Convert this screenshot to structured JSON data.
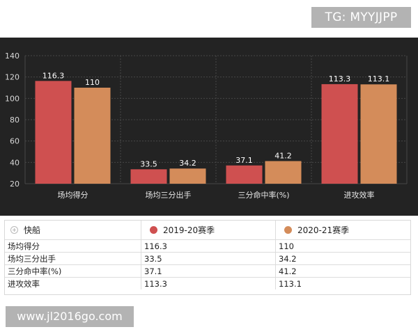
{
  "watermark_top": "TG: MYYJJPP",
  "watermark_bottom": "www.jl2016go.com",
  "colors": {
    "series1": "#cf5050",
    "series2": "#d48c5a",
    "background": "#232323"
  },
  "chart_data": {
    "type": "bar",
    "categories": [
      "场均得分",
      "场均三分出手",
      "三分命中率(%)",
      "进攻效率"
    ],
    "series": [
      {
        "name": "2019-20赛季",
        "values": [
          116.3,
          33.5,
          37.1,
          113.3
        ]
      },
      {
        "name": "2020-21赛季",
        "values": [
          110,
          34.2,
          41.2,
          113.1
        ]
      }
    ],
    "ylim": [
      20,
      140
    ],
    "yticks": [
      20,
      40,
      60,
      80,
      100,
      120,
      140
    ],
    "grid": true,
    "data_labels": true
  },
  "table": {
    "header_label": "快船",
    "series_labels": [
      "2019-20赛季",
      "2020-21赛季"
    ],
    "rows": [
      {
        "label": "场均得分",
        "v1": "116.3",
        "v2": "110"
      },
      {
        "label": "场均三分出手",
        "v1": "33.5",
        "v2": "34.2"
      },
      {
        "label": "三分命中率(%)",
        "v1": "37.1",
        "v2": "41.2"
      },
      {
        "label": "进攻效率",
        "v1": "113.3",
        "v2": "113.1"
      }
    ]
  }
}
